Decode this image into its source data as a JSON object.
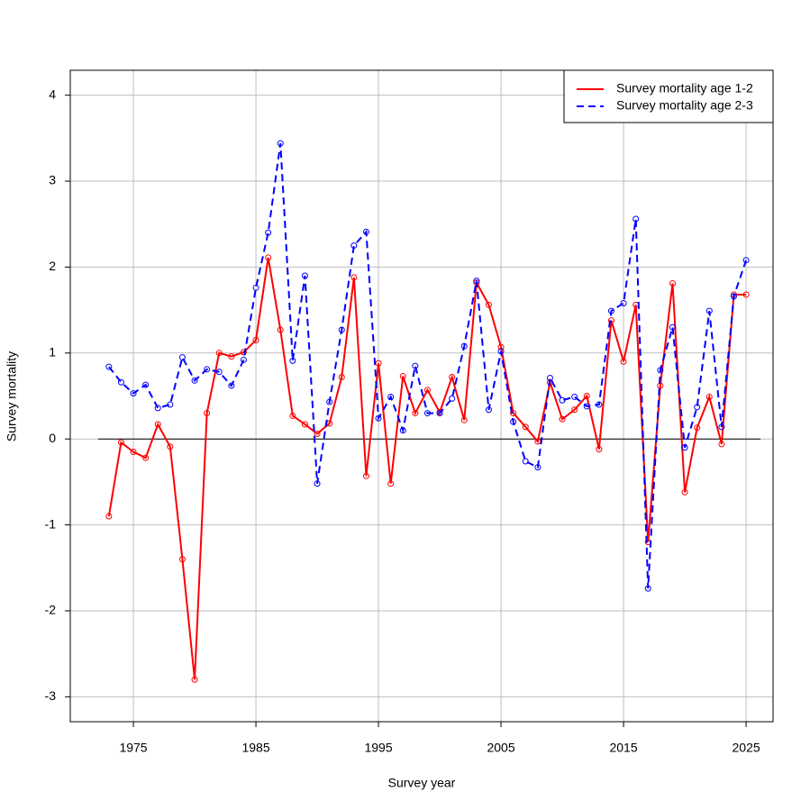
{
  "chart_data": {
    "type": "line",
    "xlabel": "Survey year",
    "ylabel": "Survey mortality",
    "x": [
      1973,
      1974,
      1975,
      1976,
      1977,
      1978,
      1979,
      1980,
      1981,
      1982,
      1983,
      1984,
      1985,
      1986,
      1987,
      1988,
      1989,
      1990,
      1991,
      1992,
      1993,
      1994,
      1995,
      1996,
      1997,
      1998,
      1999,
      2000,
      2001,
      2002,
      2003,
      2004,
      2005,
      2006,
      2007,
      2008,
      2009,
      2010,
      2011,
      2012,
      2013,
      2014,
      2015,
      2016,
      2017,
      2018,
      2019,
      2020,
      2021,
      2022,
      2023,
      2024,
      2025
    ],
    "series": [
      {
        "name": "Survey mortality age 1-2",
        "color": "#ff0000",
        "dash": false,
        "values": [
          -0.9,
          -0.04,
          -0.15,
          -0.22,
          0.17,
          -0.09,
          -1.4,
          -2.8,
          0.3,
          1.0,
          0.96,
          1.01,
          1.15,
          2.11,
          1.27,
          0.27,
          0.17,
          0.06,
          0.18,
          0.72,
          1.88,
          -0.43,
          0.88,
          -0.52,
          0.73,
          0.3,
          0.57,
          0.31,
          0.72,
          0.22,
          1.82,
          1.56,
          1.07,
          0.3,
          0.14,
          -0.03,
          0.66,
          0.23,
          0.34,
          0.5,
          -0.12,
          1.38,
          0.9,
          1.56,
          -1.2,
          0.62,
          1.81,
          -0.62,
          0.13,
          0.49,
          -0.06,
          1.68,
          1.68
        ]
      },
      {
        "name": "Survey mortality age 2-3",
        "color": "#0000ff",
        "dash": true,
        "values": [
          0.84,
          0.66,
          0.53,
          0.63,
          0.36,
          0.4,
          0.95,
          0.68,
          0.81,
          0.78,
          0.62,
          0.92,
          1.76,
          2.4,
          3.44,
          0.91,
          1.9,
          -0.52,
          0.43,
          1.27,
          2.25,
          2.41,
          0.24,
          0.49,
          0.1,
          0.85,
          0.3,
          0.3,
          0.47,
          1.08,
          1.84,
          0.34,
          1.02,
          0.2,
          -0.26,
          -0.33,
          0.71,
          0.45,
          0.49,
          0.38,
          0.4,
          1.49,
          1.58,
          2.56,
          -1.74,
          0.8,
          1.3,
          -0.1,
          0.37,
          1.49,
          0.14,
          1.66,
          2.08
        ]
      }
    ],
    "xlim": [
      1969.85,
      2027.2
    ],
    "xticks": [
      1975,
      1985,
      1995,
      2005,
      2015,
      2025
    ],
    "ylim": [
      -3.29,
      4.29
    ],
    "yticks": [
      -3,
      -2,
      -1,
      0,
      1,
      2,
      3,
      4
    ],
    "reference_line": 0,
    "grid": true,
    "legend": "top-right"
  }
}
